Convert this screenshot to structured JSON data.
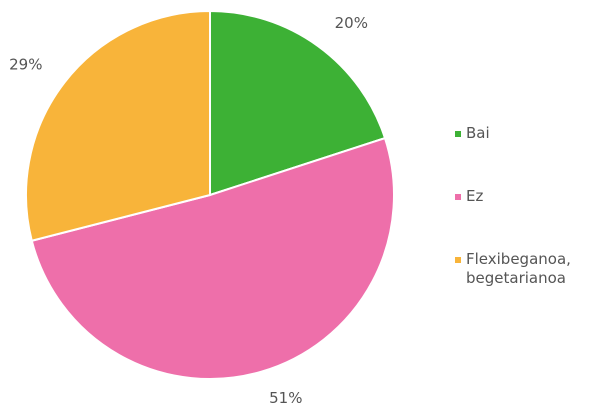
{
  "chart_data": {
    "type": "pie",
    "categories": [
      "Bai",
      "Ez",
      "Flexibeganoa, begetarianoa"
    ],
    "values": [
      20,
      51,
      29
    ],
    "value_labels": [
      "20%",
      "51%",
      "29%"
    ],
    "colors": [
      "#3db135",
      "#ee6faa",
      "#f8b43a"
    ],
    "legend": "right"
  }
}
